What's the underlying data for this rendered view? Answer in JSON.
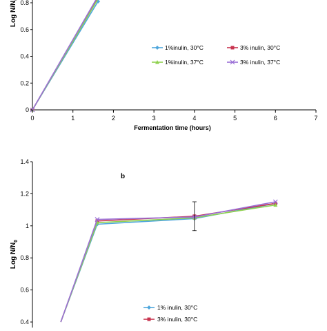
{
  "chart_data": [
    {
      "type": "line",
      "panel_label": "",
      "xlabel": "Fermentation time (hours)",
      "ylabel": "Log N/N",
      "ylabel_subscript": "0",
      "xlim": [
        0,
        7
      ],
      "ylim": [
        0,
        0.8
      ],
      "x_ticks": [
        "0",
        "1",
        "2",
        "3",
        "4",
        "5",
        "6",
        "7"
      ],
      "y_ticks": [
        "0",
        "0.2",
        "0.4",
        "0.6",
        "0.8"
      ],
      "legend_position": "center-right",
      "series": [
        {
          "name": "1%inulin, 30°C",
          "color": "#4ea6dc",
          "marker": "diamond",
          "x": [
            0,
            1.62
          ],
          "y": [
            0,
            0.81
          ]
        },
        {
          "name": "3% inulin, 30°C",
          "color": "#c8344f",
          "marker": "square",
          "x": [
            0,
            1.62
          ],
          "y": [
            0,
            0.84
          ]
        },
        {
          "name": "1%inulin, 37°C",
          "color": "#8fd14f",
          "marker": "triangle",
          "x": [
            0,
            1.62
          ],
          "y": [
            0,
            0.83
          ]
        },
        {
          "name": "3% inulin, 37°C",
          "color": "#9a6fd6",
          "marker": "cross",
          "x": [
            0,
            1.62
          ],
          "y": [
            0,
            0.85
          ]
        }
      ]
    },
    {
      "type": "line",
      "panel_label": "b",
      "xlabel": "",
      "ylabel": "Log N/N",
      "ylabel_subscript": "0",
      "xlim": [
        0,
        7
      ],
      "ylim": [
        0.4,
        1.4
      ],
      "y_ticks": [
        "0.4",
        "0.6",
        "0.8",
        "1",
        "1.2",
        "1.4"
      ],
      "legend_position": "bottom-center",
      "error_bar": {
        "x": 4,
        "y": 1.06,
        "err": 0.09
      },
      "series": [
        {
          "name": "1% inulin, 30°C",
          "color": "#4ea6dc",
          "marker": "diamond",
          "x": [
            0.7,
            1.6,
            4,
            6
          ],
          "y": [
            0.4,
            1.01,
            1.045,
            1.14
          ]
        },
        {
          "name": "3% inulin, 30°C",
          "color": "#c8344f",
          "marker": "square",
          "x": [
            0.7,
            1.6,
            4,
            6
          ],
          "y": [
            0.4,
            1.03,
            1.06,
            1.14
          ]
        },
        {
          "name": "",
          "color": "#8fd14f",
          "marker": "triangle",
          "x": [
            0.7,
            1.6,
            4,
            6
          ],
          "y": [
            0.4,
            1.02,
            1.05,
            1.13
          ]
        },
        {
          "name": "",
          "color": "#9a6fd6",
          "marker": "cross",
          "x": [
            0.7,
            1.6,
            4,
            6
          ],
          "y": [
            0.4,
            1.04,
            1.055,
            1.15
          ]
        }
      ]
    }
  ]
}
